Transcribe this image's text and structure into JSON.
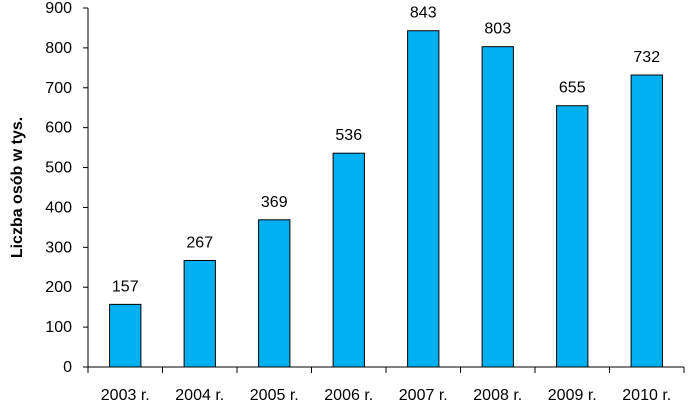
{
  "chart_data": {
    "type": "bar",
    "title": "",
    "xlabel": "",
    "ylabel": "Liczba osób w tys.",
    "ylim": [
      0,
      900
    ],
    "yticks": [
      0,
      100,
      200,
      300,
      400,
      500,
      600,
      700,
      800,
      900
    ],
    "categories": [
      "2003 r.",
      "2004 r.",
      "2005 r.",
      "2006 r.",
      "2007 r.",
      "2008 r.",
      "2009 r.",
      "2010 r."
    ],
    "values": [
      157,
      267,
      369,
      536,
      843,
      803,
      655,
      732
    ],
    "data_labels": [
      "157",
      "267",
      "369",
      "536",
      "843",
      "803",
      "655",
      "732"
    ],
    "bar_color": "#00B0F0",
    "grid": false,
    "legend": "none"
  }
}
